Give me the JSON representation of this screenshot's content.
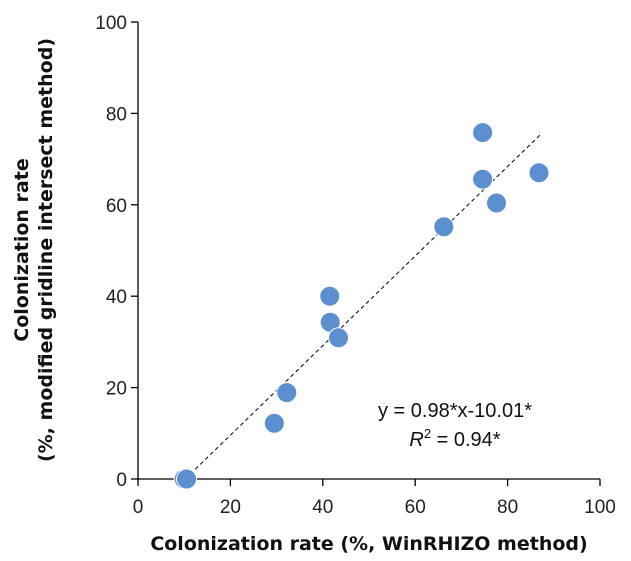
{
  "chart_data": {
    "type": "scatter",
    "title": "",
    "xlabel": "Colonization rate (%, WinRHIZO method)",
    "ylabel_line1": "Colonization rate",
    "ylabel_line2": "(%, modified gridline intersect method)",
    "xlim": [
      0,
      100
    ],
    "ylim": [
      0,
      100
    ],
    "xticks": [
      "0",
      "20",
      "40",
      "60",
      "80",
      "100"
    ],
    "yticks": [
      "0",
      "20",
      "40",
      "60",
      "80",
      "100"
    ],
    "grid": false,
    "legend": "none",
    "marker_color": "#5B8FD0",
    "points": [
      {
        "x": 10.0,
        "y": 0.0
      },
      {
        "x": 10.5,
        "y": 0.0
      },
      {
        "x": 29.5,
        "y": 12.2
      },
      {
        "x": 32.2,
        "y": 18.9
      },
      {
        "x": 41.5,
        "y": 40.0
      },
      {
        "x": 41.6,
        "y": 34.3
      },
      {
        "x": 43.4,
        "y": 30.9
      },
      {
        "x": 66.2,
        "y": 55.2
      },
      {
        "x": 74.6,
        "y": 75.8
      },
      {
        "x": 74.6,
        "y": 65.6
      },
      {
        "x": 77.6,
        "y": 60.4
      },
      {
        "x": 86.8,
        "y": 67.0
      }
    ],
    "trendline": {
      "slope": 0.98,
      "intercept": -10.01,
      "x_range": [
        10.2,
        87.0
      ],
      "style": "dashed"
    },
    "annotations": {
      "equation": "y = 0.98*x-10.01*",
      "r2_symbol": "R",
      "r2_exp": "2",
      "r2_rest": " = 0.94*"
    }
  }
}
